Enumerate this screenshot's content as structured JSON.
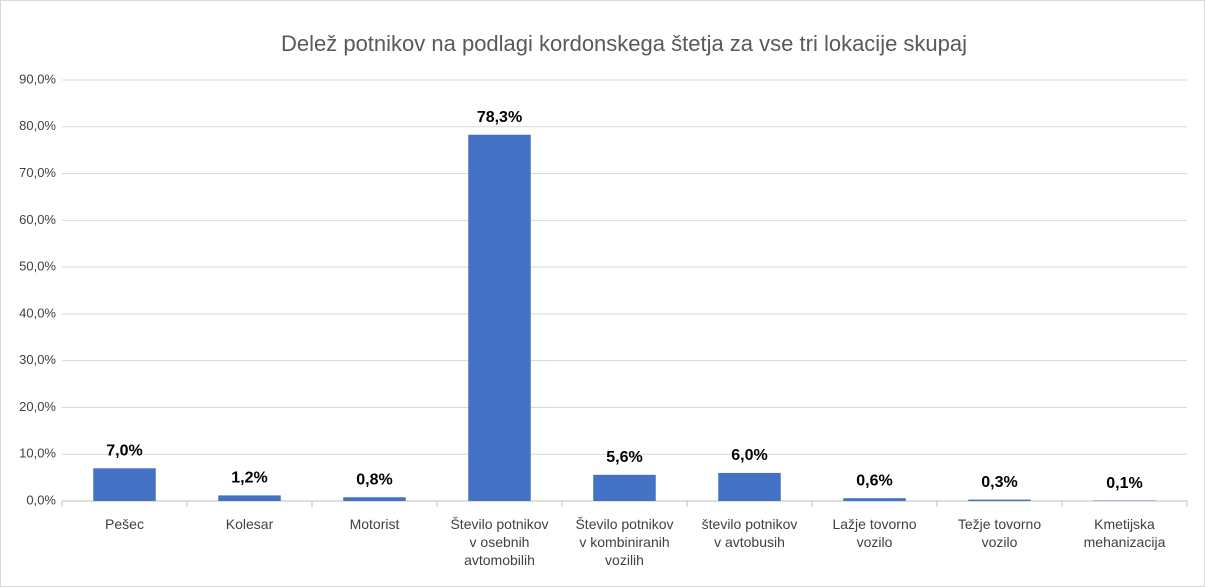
{
  "chart_data": {
    "type": "bar",
    "title": "Delež potnikov na podlagi kordonskega štetja za vse tri lokacije skupaj",
    "categories": [
      "Pešec",
      "Kolesar",
      "Motorist",
      "Število potnikov\nv osebnih\navtomobilih",
      "Število potnikov\nv kombiniranih\nvozilih",
      "število potnikov\nv avtobusih",
      "Lažje tovorno\nvozilo",
      "Težje tovorno\nvozilo",
      "Kmetijska\nmehanizacija"
    ],
    "values": [
      7.0,
      1.2,
      0.8,
      78.3,
      5.6,
      6.0,
      0.6,
      0.3,
      0.1
    ],
    "value_labels": [
      "7,0%",
      "1,2%",
      "0,8%",
      "78,3%",
      "5,6%",
      "6,0%",
      "0,6%",
      "0,3%",
      "0,1%"
    ],
    "color": "#4472c4",
    "ylim": [
      0,
      90
    ],
    "yticks": [
      {
        "value": 0,
        "label": "0,0%"
      },
      {
        "value": 10,
        "label": "10,0%"
      },
      {
        "value": 20,
        "label": "20,0%"
      },
      {
        "value": 30,
        "label": "30,0%"
      },
      {
        "value": 40,
        "label": "40,0%"
      },
      {
        "value": 50,
        "label": "50,0%"
      },
      {
        "value": 60,
        "label": "60,0%"
      },
      {
        "value": 70,
        "label": "70,0%"
      },
      {
        "value": 80,
        "label": "80,0%"
      },
      {
        "value": 90,
        "label": "90,0%"
      }
    ],
    "grid": true
  }
}
